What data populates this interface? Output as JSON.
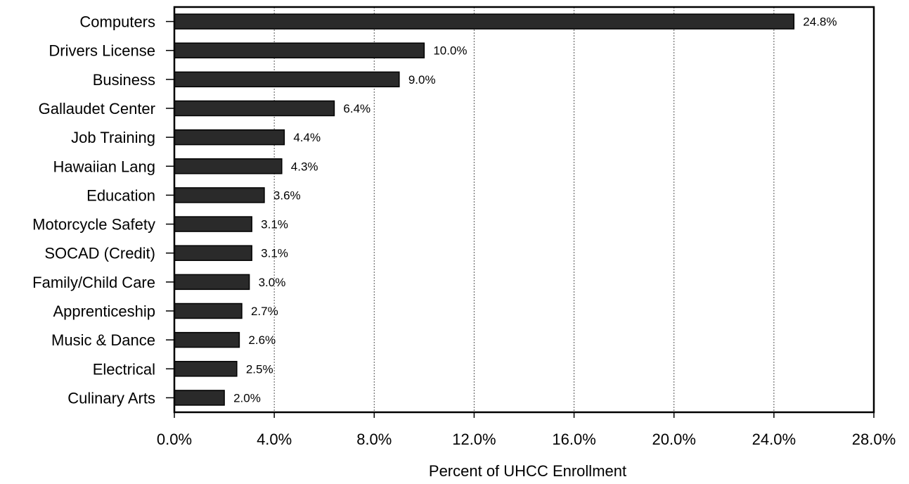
{
  "chart_data": {
    "type": "bar",
    "orientation": "horizontal",
    "title": "",
    "xlabel": "Percent of UHCC Enrollment",
    "ylabel": "",
    "categories": [
      "Computers",
      "Drivers License",
      "Business",
      "Gallaudet Center",
      "Job Training",
      "Hawaiian Lang",
      "Education",
      "Motorcycle Safety",
      "SOCAD (Credit)",
      "Family/Child Care",
      "Apprenticeship",
      "Music & Dance",
      "Electrical",
      "Culinary Arts"
    ],
    "values": [
      24.8,
      10.0,
      9.0,
      6.4,
      4.4,
      4.3,
      3.6,
      3.1,
      3.1,
      3.0,
      2.7,
      2.6,
      2.5,
      2.0
    ],
    "data_labels": [
      "24.8%",
      "10.0%",
      "9.0%",
      "6.4%",
      "4.4%",
      "4.3%",
      "3.6%",
      "3.1%",
      "3.1%",
      "3.0%",
      "2.7%",
      "2.6%",
      "2.5%",
      "2.0%"
    ],
    "xlim": [
      0,
      28
    ],
    "x_ticks": [
      0,
      4,
      8,
      12,
      16,
      20,
      24,
      28
    ],
    "x_tick_labels": [
      "0.0%",
      "4.0%",
      "8.0%",
      "12.0%",
      "16.0%",
      "20.0%",
      "24.0%",
      "28.0%"
    ],
    "grid": "vertical dashed",
    "legend": "none",
    "bar_color": "#2a2a2a"
  }
}
